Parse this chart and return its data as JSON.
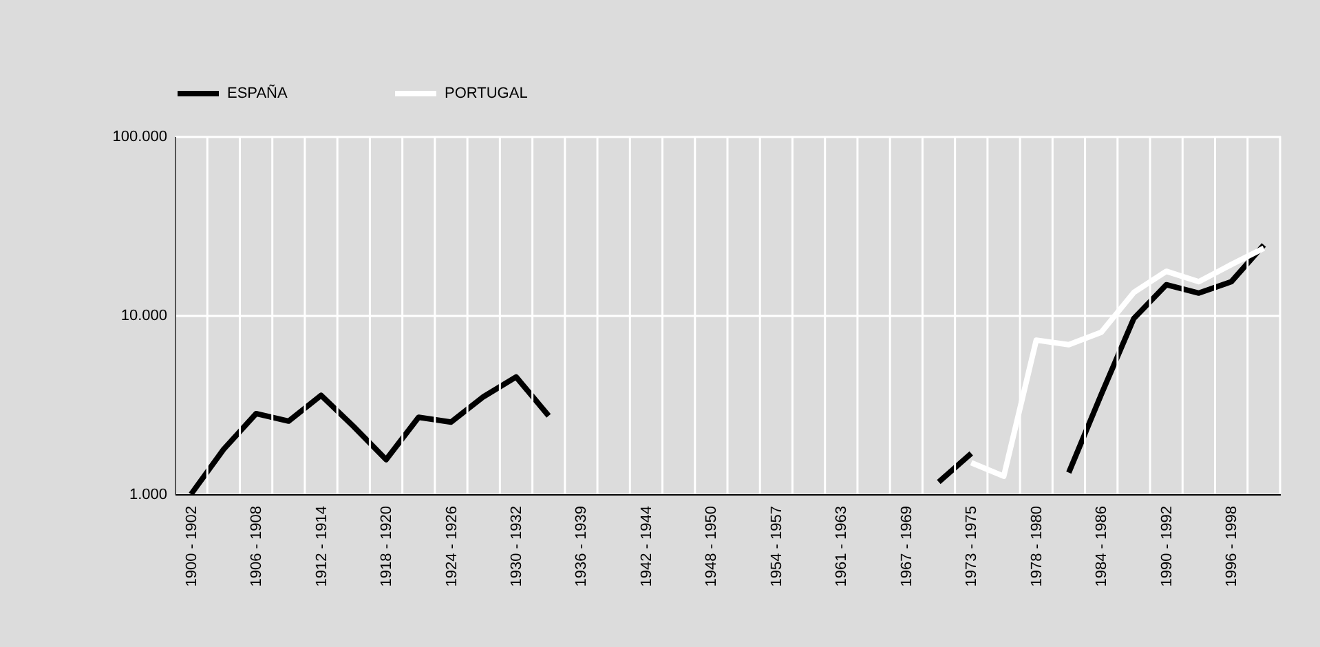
{
  "chart_data": {
    "type": "line",
    "categories": [
      "1900 - 1902",
      null,
      "1906 - 1908",
      null,
      "1912 - 1914",
      null,
      "1918 - 1920",
      null,
      "1924 - 1926",
      null,
      "1930 - 1932",
      null,
      "1936 - 1939",
      null,
      "1942 - 1944",
      null,
      "1948 - 1950",
      null,
      "1954 - 1957",
      null,
      "1961 - 1963",
      null,
      "1967 - 1969",
      null,
      "1973 - 1975",
      null,
      "1978 - 1980",
      null,
      "1984 - 1986",
      null,
      "1990 - 1992",
      null,
      "1996 - 1998",
      null
    ],
    "series": [
      {
        "name": "ESPAÑA",
        "color": "#000000",
        "values": [
          1000,
          1780,
          2820,
          2560,
          3570,
          2390,
          1560,
          2690,
          2530,
          3510,
          4520,
          2740,
          null,
          null,
          null,
          null,
          null,
          null,
          null,
          null,
          null,
          null,
          null,
          1170,
          1690,
          null,
          null,
          1320,
          3610,
          9590,
          14800,
          13300,
          15400,
          24700
        ]
      },
      {
        "name": "PORTUGAL",
        "color": "#ffffff",
        "values": [
          null,
          null,
          null,
          null,
          null,
          null,
          null,
          null,
          null,
          null,
          null,
          null,
          null,
          null,
          null,
          null,
          null,
          null,
          null,
          null,
          null,
          null,
          null,
          null,
          1500,
          1260,
          7260,
          6850,
          8030,
          13400,
          17600,
          15400,
          19200,
          23700
        ]
      }
    ],
    "log": true,
    "ylim": [
      1000,
      100000
    ],
    "yticks": [
      {
        "value": 1000,
        "label": "1.000"
      },
      {
        "value": 10000,
        "label": "10.000"
      },
      {
        "value": 100000,
        "label": "100.000"
      }
    ],
    "grid": true,
    "legend": "top left",
    "line_style": "solid",
    "marker": "none"
  }
}
